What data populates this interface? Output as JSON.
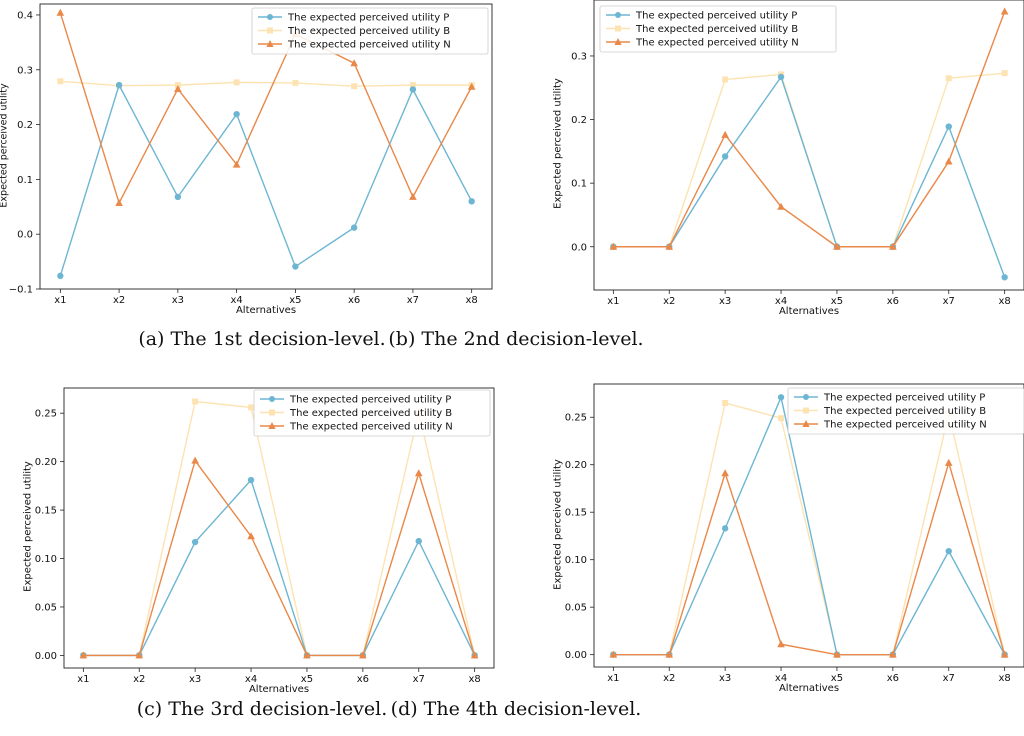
{
  "series_names": [
    "The expected perceived utility P",
    "The expected perceived utility B",
    "The expected perceived utility N"
  ],
  "colors": {
    "P": "#6db6d3",
    "B": "#fde3b2",
    "N": "#e98848"
  },
  "chart_data": [
    {
      "type": "line",
      "caption": "(a) The 1st decision-level.",
      "xlabel": "Alternatives",
      "ylabel": "Expected perceived utility",
      "categories": [
        "x1",
        "x2",
        "x3",
        "x4",
        "x5",
        "x6",
        "x7",
        "x8"
      ],
      "ylim": [
        -0.1,
        0.42
      ],
      "yticks": [
        -0.1,
        0.0,
        0.1,
        0.2,
        0.3,
        0.4
      ],
      "ytick_labels": [
        "−0.1",
        "0.0",
        "0.1",
        "0.2",
        "0.3",
        "0.4"
      ],
      "legend": "top-right",
      "series": [
        {
          "name": "The expected perceived utility P",
          "values": [
            -0.076,
            0.272,
            0.068,
            0.219,
            -0.059,
            0.012,
            0.264,
            0.06
          ]
        },
        {
          "name": "The expected perceived utility B",
          "values": [
            0.279,
            0.271,
            0.272,
            0.277,
            0.276,
            0.27,
            0.272,
            0.272
          ]
        },
        {
          "name": "The expected perceived utility N",
          "values": [
            0.404,
            0.057,
            0.265,
            0.127,
            0.365,
            0.312,
            0.068,
            0.269
          ]
        }
      ]
    },
    {
      "type": "line",
      "caption": "(b) The 2nd decision-level.",
      "xlabel": "Alternatives",
      "ylabel": "Expected perceived utility",
      "categories": [
        "x1",
        "x2",
        "x3",
        "x4",
        "x5",
        "x6",
        "x7",
        "x8"
      ],
      "ylim": [
        -0.068,
        0.388
      ],
      "yticks": [
        0.0,
        0.1,
        0.2,
        0.3
      ],
      "ytick_labels": [
        "0.0",
        "0.1",
        "0.2",
        "0.3"
      ],
      "legend": "top-left",
      "series": [
        {
          "name": "The expected perceived utility P",
          "values": [
            0.0,
            0.0,
            0.142,
            0.267,
            0.0,
            0.0,
            0.189,
            -0.048
          ]
        },
        {
          "name": "The expected perceived utility B",
          "values": [
            0.0,
            0.0,
            0.263,
            0.271,
            0.0,
            0.0,
            0.265,
            0.273
          ]
        },
        {
          "name": "The expected perceived utility N",
          "values": [
            0.0,
            0.0,
            0.176,
            0.063,
            0.0,
            0.0,
            0.134,
            0.37
          ]
        }
      ]
    },
    {
      "type": "line",
      "caption": "(c) The 3rd decision-level.",
      "xlabel": "Alternatives",
      "ylabel": "Expected perceived utility",
      "categories": [
        "x1",
        "x2",
        "x3",
        "x4",
        "x5",
        "x6",
        "x7",
        "x8"
      ],
      "ylim": [
        -0.013,
        0.276
      ],
      "yticks": [
        0.0,
        0.05,
        0.1,
        0.15,
        0.2,
        0.25
      ],
      "ytick_labels": [
        "0.00",
        "0.05",
        "0.10",
        "0.15",
        "0.20",
        "0.25"
      ],
      "legend": "top-right",
      "series": [
        {
          "name": "The expected perceived utility P",
          "values": [
            0.0,
            0.0,
            0.117,
            0.181,
            0.0,
            0.0,
            0.118,
            0.0
          ]
        },
        {
          "name": "The expected perceived utility B",
          "values": [
            0.0,
            0.0,
            0.262,
            0.256,
            0.0,
            0.0,
            0.251,
            0.0
          ]
        },
        {
          "name": "The expected perceived utility N",
          "values": [
            0.0,
            0.0,
            0.201,
            0.123,
            0.0,
            0.0,
            0.188,
            0.0
          ]
        }
      ]
    },
    {
      "type": "line",
      "caption": "(d) The 4th decision-level.",
      "xlabel": "Alternatives",
      "ylabel": "Expected perceived utility",
      "categories": [
        "x1",
        "x2",
        "x3",
        "x4",
        "x5",
        "x6",
        "x7",
        "x8"
      ],
      "ylim": [
        -0.013,
        0.285
      ],
      "yticks": [
        0.0,
        0.05,
        0.1,
        0.15,
        0.2,
        0.25
      ],
      "ytick_labels": [
        "0.00",
        "0.05",
        "0.10",
        "0.15",
        "0.20",
        "0.25"
      ],
      "legend": "top-right",
      "series": [
        {
          "name": "The expected perceived utility P",
          "values": [
            0.0,
            0.0,
            0.133,
            0.271,
            0.0,
            0.0,
            0.109,
            0.0
          ]
        },
        {
          "name": "The expected perceived utility B",
          "values": [
            0.0,
            0.0,
            0.265,
            0.249,
            0.0,
            0.0,
            0.254,
            0.0
          ]
        },
        {
          "name": "The expected perceived utility N",
          "values": [
            0.0,
            0.0,
            0.191,
            0.011,
            0.0,
            0.0,
            0.202,
            0.0
          ]
        }
      ]
    }
  ]
}
